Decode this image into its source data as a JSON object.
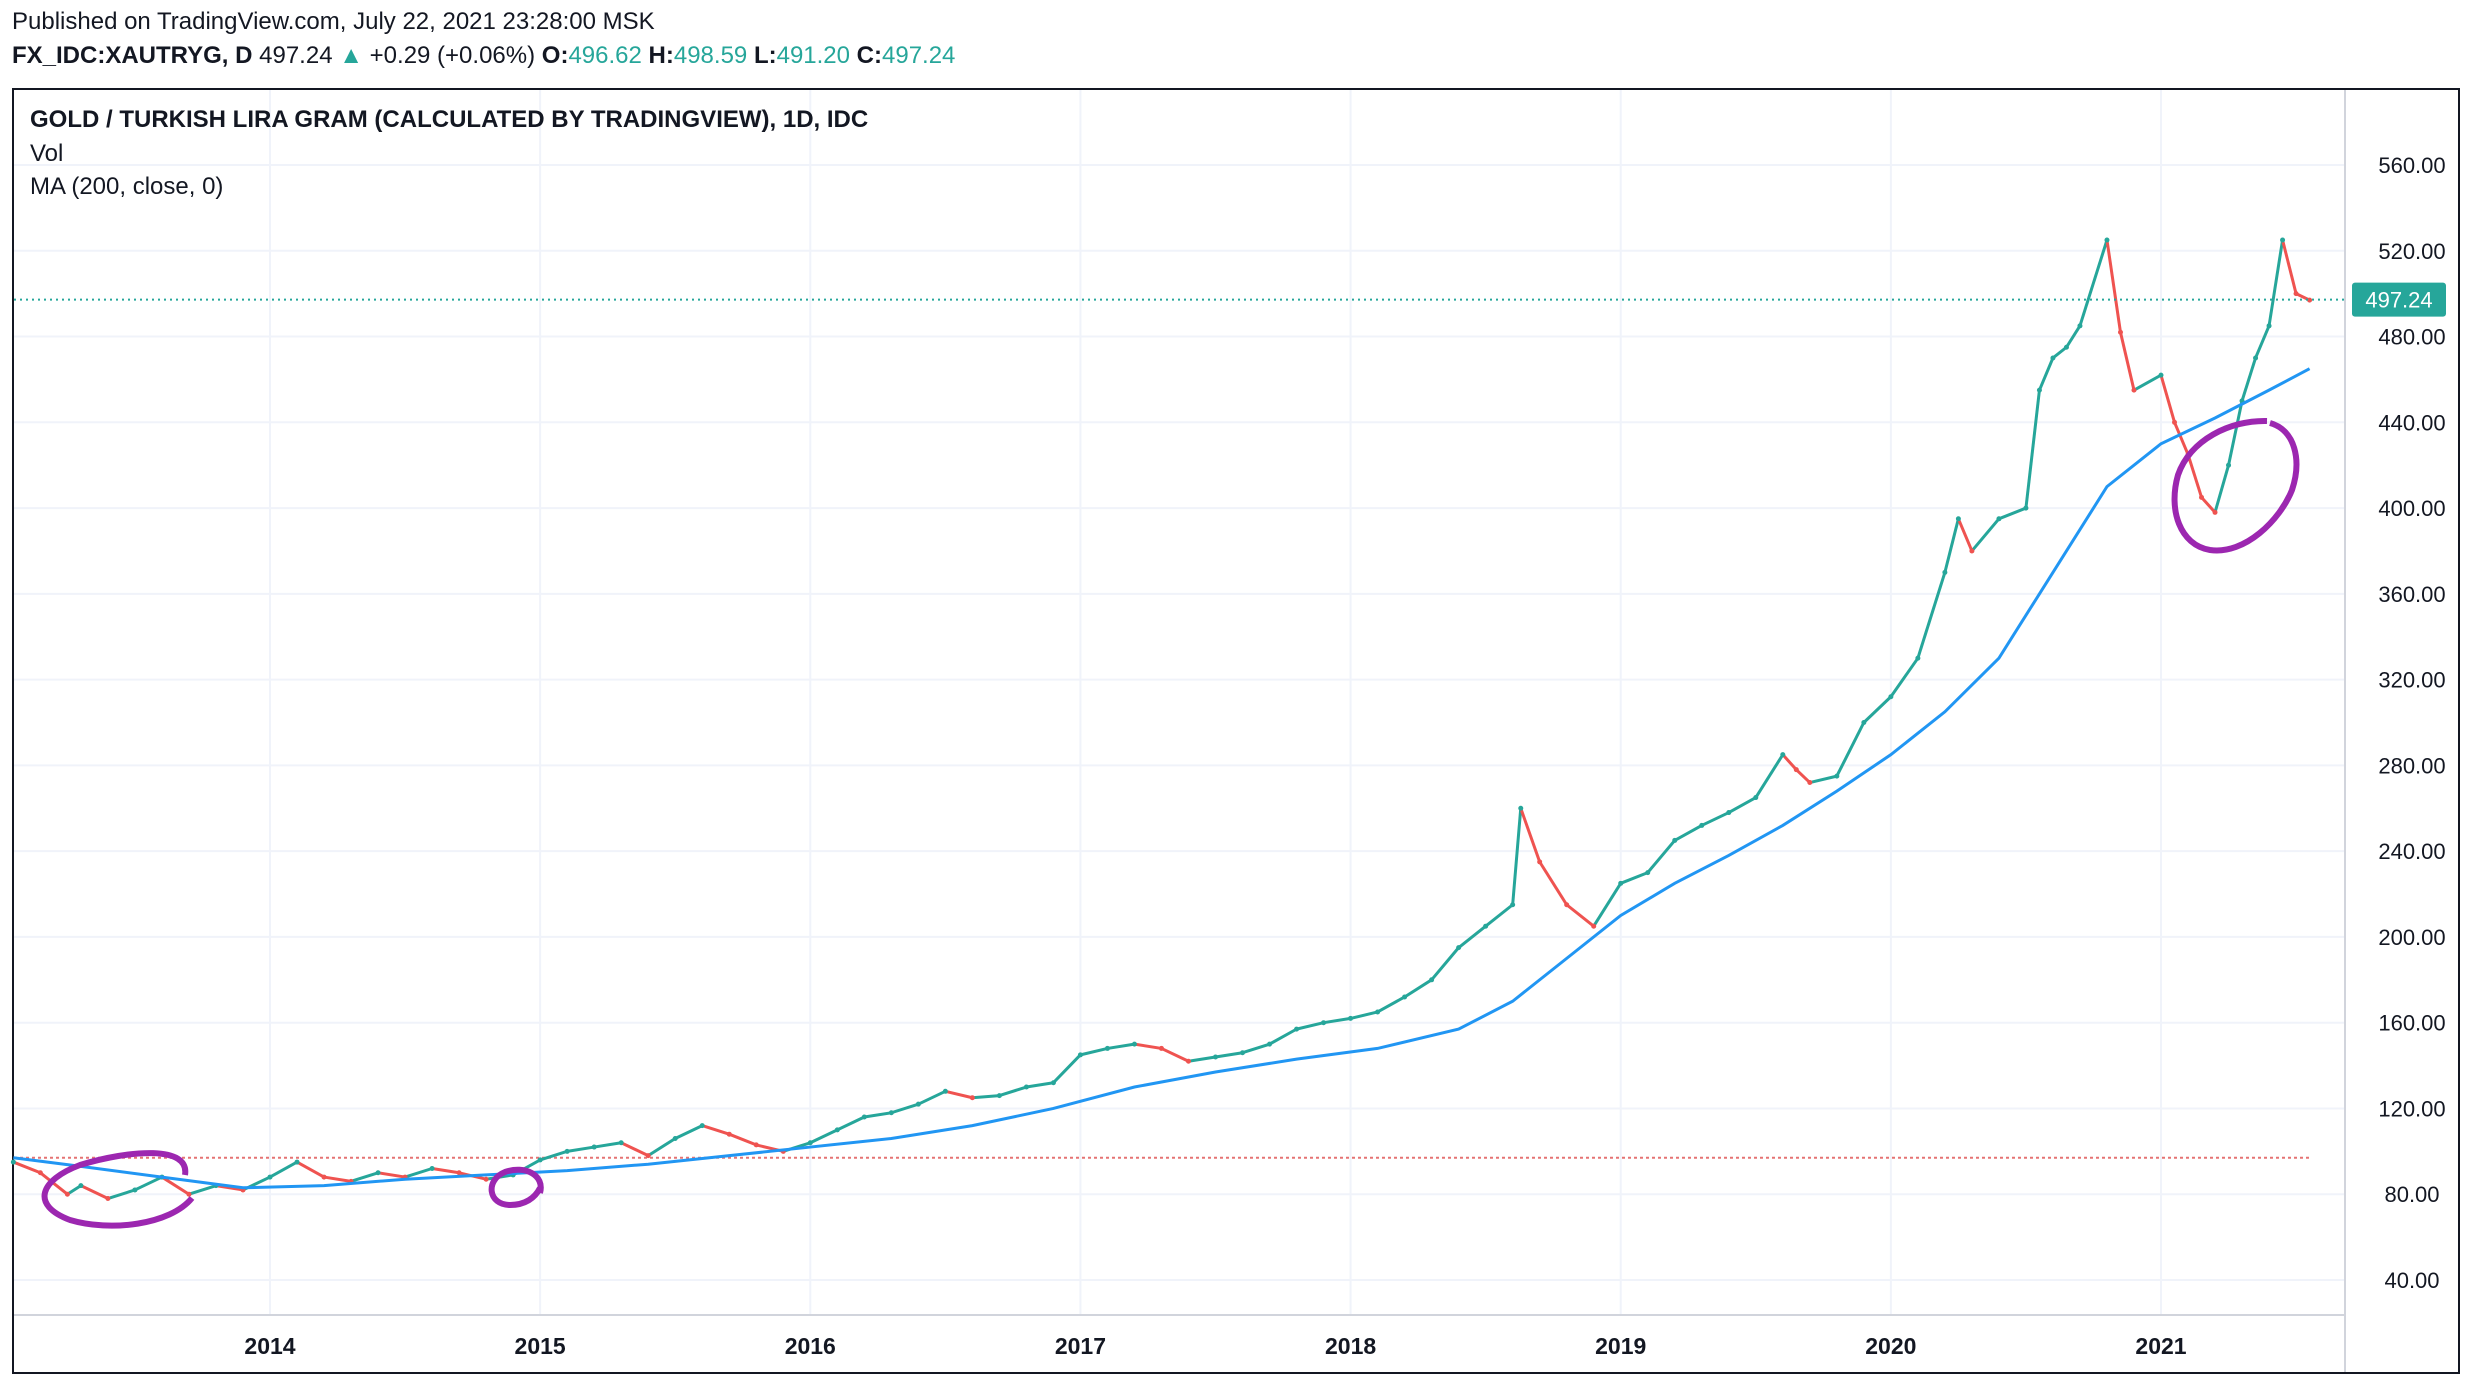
{
  "header": {
    "published": "Published on TradingView.com, July 22, 2021 23:28:00 MSK",
    "symbol": "FX_IDC:XAUTRYG, D",
    "last": "497.24",
    "change_arrow": "▲",
    "change": "+0.29 (+0.06%)",
    "o_label": "O:",
    "o_value": "496.62",
    "h_label": "H:",
    "h_value": "498.59",
    "l_label": "L:",
    "l_value": "491.20",
    "c_label": "C:",
    "c_value": "497.24"
  },
  "legend": {
    "title": "GOLD / TURKISH LIRA GRAM (CALCULATED BY TRADINGVIEW), 1D, IDC",
    "vol": "Vol",
    "ma": "MA (200, close, 0)"
  },
  "colors": {
    "up": "#26a69a",
    "down": "#ef5350",
    "ma": "#2196f3",
    "annotation": "#9c27b0",
    "last_price": "#26a69a",
    "grid": "#f0f3fa"
  },
  "chart_data": {
    "type": "line",
    "ylim": [
      20,
      600
    ],
    "y_ticks": [
      "40.00",
      "80.00",
      "120.00",
      "160.00",
      "200.00",
      "240.00",
      "280.00",
      "320.00",
      "360.00",
      "400.00",
      "440.00",
      "480.00",
      "520.00",
      "560.00"
    ],
    "y_tick_values": [
      40,
      80,
      120,
      160,
      200,
      240,
      280,
      320,
      360,
      400,
      440,
      480,
      520,
      560
    ],
    "x_ticks": [
      "2014",
      "2015",
      "2016",
      "2017",
      "2018",
      "2019",
      "2020",
      "2021"
    ],
    "x_tick_values": [
      2014.0,
      2015.0,
      2016.0,
      2017.0,
      2018.0,
      2019.0,
      2020.0,
      2021.0
    ],
    "xlim": [
      2013.05,
      2021.7
    ],
    "last_price": 497.24,
    "last_price_label": "497.24",
    "reference_level": 97,
    "series": [
      {
        "name": "",
        "x": [
          2013.05,
          2013.15,
          2013.25,
          2013.3,
          2013.4,
          2013.5,
          2013.6,
          2013.7,
          2013.8,
          2013.9,
          2014.0,
          2014.1,
          2014.2,
          2014.3,
          2014.4,
          2014.5,
          2014.6,
          2014.7,
          2014.8,
          2014.9,
          2015.0,
          2015.1,
          2015.2,
          2015.3,
          2015.4,
          2015.5,
          2015.6,
          2015.7,
          2015.8,
          2015.9,
          2016.0,
          2016.1,
          2016.2,
          2016.3,
          2016.4,
          2016.5,
          2016.6,
          2016.7,
          2016.8,
          2016.9,
          2017.0,
          2017.1,
          2017.2,
          2017.3,
          2017.4,
          2017.5,
          2017.6,
          2017.7,
          2017.8,
          2017.9,
          2018.0,
          2018.1,
          2018.2,
          2018.3,
          2018.4,
          2018.5,
          2018.6,
          2018.63,
          2018.7,
          2018.8,
          2018.9,
          2019.0,
          2019.1,
          2019.2,
          2019.3,
          2019.4,
          2019.5,
          2019.6,
          2019.65,
          2019.7,
          2019.8,
          2019.9,
          2020.0,
          2020.1,
          2020.2,
          2020.25,
          2020.3,
          2020.4,
          2020.5,
          2020.55,
          2020.6,
          2020.65,
          2020.7,
          2020.8,
          2020.85,
          2020.9,
          2021.0,
          2021.05,
          2021.1,
          2021.15,
          2021.2,
          2021.25,
          2021.3,
          2021.35,
          2021.4,
          2021.45,
          2021.5,
          2021.55
        ],
        "values": [
          95,
          90,
          80,
          84,
          78,
          82,
          88,
          80,
          84,
          82,
          88,
          95,
          88,
          86,
          90,
          88,
          92,
          90,
          87,
          89,
          96,
          100,
          102,
          104,
          98,
          106,
          112,
          108,
          103,
          100,
          104,
          110,
          116,
          118,
          122,
          128,
          125,
          126,
          130,
          132,
          145,
          148,
          150,
          148,
          142,
          144,
          146,
          150,
          157,
          160,
          162,
          165,
          172,
          180,
          195,
          205,
          215,
          260,
          235,
          215,
          205,
          225,
          230,
          245,
          252,
          258,
          265,
          285,
          278,
          272,
          275,
          300,
          312,
          330,
          370,
          395,
          380,
          395,
          400,
          455,
          470,
          475,
          485,
          525,
          482,
          455,
          462,
          440,
          425,
          405,
          398,
          420,
          450,
          470,
          485,
          525,
          500,
          497
        ]
      },
      {
        "name": "MA (200, close, 0)",
        "x": [
          2013.05,
          2013.3,
          2013.6,
          2013.9,
          2014.2,
          2014.5,
          2014.8,
          2015.1,
          2015.4,
          2015.7,
          2016.0,
          2016.3,
          2016.6,
          2016.9,
          2017.2,
          2017.5,
          2017.8,
          2018.1,
          2018.4,
          2018.6,
          2018.8,
          2019.0,
          2019.2,
          2019.4,
          2019.6,
          2019.8,
          2020.0,
          2020.2,
          2020.4,
          2020.6,
          2020.8,
          2021.0,
          2021.2,
          2021.4,
          2021.55
        ],
        "values": [
          97,
          93,
          88,
          83,
          84,
          87,
          89,
          91,
          94,
          98,
          102,
          106,
          112,
          120,
          130,
          137,
          143,
          148,
          157,
          170,
          190,
          210,
          225,
          238,
          252,
          268,
          285,
          305,
          330,
          370,
          410,
          430,
          442,
          455,
          465
        ]
      }
    ]
  }
}
